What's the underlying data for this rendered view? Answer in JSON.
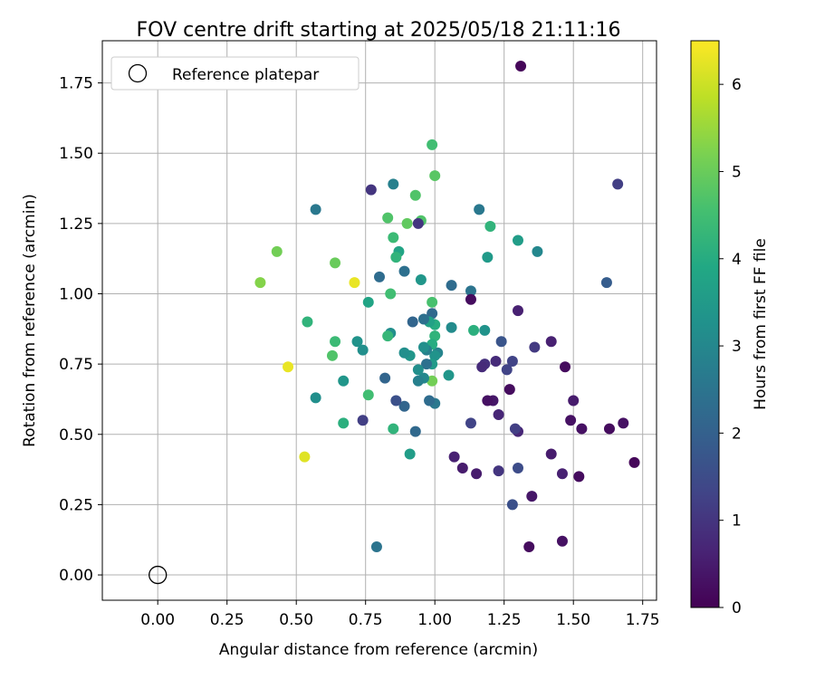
{
  "chart_data": {
    "type": "scatter",
    "title": "FOV centre drift starting at 2025/05/18 21:11:16",
    "xlabel": "Angular distance from reference (arcmin)",
    "ylabel": "Rotation from reference (arcmin)",
    "xlim": [
      -0.2,
      1.8
    ],
    "ylim": [
      -0.09,
      1.9
    ],
    "xticks": [
      "0.00",
      "0.25",
      "0.50",
      "0.75",
      "1.00",
      "1.25",
      "1.50",
      "1.75"
    ],
    "yticks": [
      "0.00",
      "0.25",
      "0.50",
      "0.75",
      "1.00",
      "1.25",
      "1.50",
      "1.75"
    ],
    "grid": true,
    "legend": {
      "placement": "top-left",
      "label": "Reference platepar"
    },
    "reference_point": {
      "x": 0.0,
      "y": 0.0
    },
    "colorbar": {
      "label": "Hours from first FF file",
      "range": [
        0,
        6.5
      ],
      "ticks": [
        "0",
        "1",
        "2",
        "3",
        "4",
        "5",
        "6"
      ],
      "colormap": "viridis"
    },
    "points": [
      {
        "x": 1.31,
        "y": 1.81,
        "t": 0.1
      },
      {
        "x": 1.66,
        "y": 1.39,
        "t": 1.2
      },
      {
        "x": 1.62,
        "y": 1.04,
        "t": 1.9
      },
      {
        "x": 1.72,
        "y": 0.4,
        "t": 0.1
      },
      {
        "x": 1.68,
        "y": 0.54,
        "t": 0.3
      },
      {
        "x": 1.63,
        "y": 0.52,
        "t": 0.2
      },
      {
        "x": 1.53,
        "y": 0.52,
        "t": 0.3
      },
      {
        "x": 1.5,
        "y": 0.62,
        "t": 0.5
      },
      {
        "x": 1.49,
        "y": 0.55,
        "t": 0.3
      },
      {
        "x": 1.47,
        "y": 0.74,
        "t": 0.2
      },
      {
        "x": 1.46,
        "y": 0.36,
        "t": 0.6
      },
      {
        "x": 1.46,
        "y": 0.12,
        "t": 0.3
      },
      {
        "x": 1.52,
        "y": 0.35,
        "t": 0.2
      },
      {
        "x": 1.42,
        "y": 0.83,
        "t": 0.6
      },
      {
        "x": 1.42,
        "y": 0.43,
        "t": 0.5
      },
      {
        "x": 1.37,
        "y": 1.15,
        "t": 3.0
      },
      {
        "x": 1.36,
        "y": 0.81,
        "t": 1.1
      },
      {
        "x": 1.35,
        "y": 0.28,
        "t": 0.4
      },
      {
        "x": 1.34,
        "y": 0.1,
        "t": 0.2
      },
      {
        "x": 1.3,
        "y": 1.19,
        "t": 3.6
      },
      {
        "x": 1.3,
        "y": 0.94,
        "t": 0.6
      },
      {
        "x": 1.3,
        "y": 0.51,
        "t": 0.7
      },
      {
        "x": 1.3,
        "y": 0.38,
        "t": 1.5
      },
      {
        "x": 1.29,
        "y": 0.52,
        "t": 1.2
      },
      {
        "x": 1.28,
        "y": 0.25,
        "t": 1.6
      },
      {
        "x": 1.27,
        "y": 0.66,
        "t": 0.2
      },
      {
        "x": 1.28,
        "y": 0.76,
        "t": 1.3
      },
      {
        "x": 1.26,
        "y": 0.73,
        "t": 1.3
      },
      {
        "x": 1.24,
        "y": 0.83,
        "t": 1.7
      },
      {
        "x": 1.23,
        "y": 0.57,
        "t": 0.7
      },
      {
        "x": 1.23,
        "y": 0.37,
        "t": 1.0
      },
      {
        "x": 1.22,
        "y": 0.76,
        "t": 0.8
      },
      {
        "x": 1.21,
        "y": 0.62,
        "t": 0.4
      },
      {
        "x": 1.2,
        "y": 1.24,
        "t": 4.2
      },
      {
        "x": 1.19,
        "y": 1.13,
        "t": 3.5
      },
      {
        "x": 1.19,
        "y": 0.62,
        "t": 0.3
      },
      {
        "x": 1.18,
        "y": 0.87,
        "t": 3.3
      },
      {
        "x": 1.18,
        "y": 0.75,
        "t": 0.9
      },
      {
        "x": 1.17,
        "y": 0.74,
        "t": 0.8
      },
      {
        "x": 1.16,
        "y": 1.3,
        "t": 2.6
      },
      {
        "x": 1.15,
        "y": 0.36,
        "t": 0.5
      },
      {
        "x": 1.13,
        "y": 1.01,
        "t": 2.5
      },
      {
        "x": 1.13,
        "y": 0.98,
        "t": 0.2
      },
      {
        "x": 1.14,
        "y": 0.87,
        "t": 4.1
      },
      {
        "x": 1.13,
        "y": 0.54,
        "t": 1.3
      },
      {
        "x": 1.1,
        "y": 0.38,
        "t": 0.5
      },
      {
        "x": 1.07,
        "y": 0.42,
        "t": 0.6
      },
      {
        "x": 1.06,
        "y": 1.03,
        "t": 2.3
      },
      {
        "x": 1.06,
        "y": 0.88,
        "t": 3.1
      },
      {
        "x": 1.05,
        "y": 0.71,
        "t": 3.4
      },
      {
        "x": 1.0,
        "y": 0.89,
        "t": 4.0
      },
      {
        "x": 1.01,
        "y": 0.79,
        "t": 2.9
      },
      {
        "x": 1.0,
        "y": 0.85,
        "t": 4.2
      },
      {
        "x": 1.0,
        "y": 0.78,
        "t": 3.3
      },
      {
        "x": 1.0,
        "y": 0.61,
        "t": 2.6
      },
      {
        "x": 0.99,
        "y": 1.53,
        "t": 4.5
      },
      {
        "x": 1.0,
        "y": 1.42,
        "t": 4.8
      },
      {
        "x": 0.99,
        "y": 0.97,
        "t": 4.6
      },
      {
        "x": 0.99,
        "y": 0.93,
        "t": 2.2
      },
      {
        "x": 0.99,
        "y": 0.82,
        "t": 4.0
      },
      {
        "x": 0.99,
        "y": 0.75,
        "t": 3.5
      },
      {
        "x": 0.99,
        "y": 0.69,
        "t": 5.1
      },
      {
        "x": 0.98,
        "y": 0.9,
        "t": 3.7
      },
      {
        "x": 0.98,
        "y": 0.62,
        "t": 2.3
      },
      {
        "x": 0.97,
        "y": 0.8,
        "t": 2.8
      },
      {
        "x": 0.97,
        "y": 0.75,
        "t": 2.4
      },
      {
        "x": 0.96,
        "y": 0.91,
        "t": 2.4
      },
      {
        "x": 0.96,
        "y": 0.81,
        "t": 3.2
      },
      {
        "x": 0.96,
        "y": 0.7,
        "t": 3.0
      },
      {
        "x": 0.95,
        "y": 1.26,
        "t": 4.7
      },
      {
        "x": 0.95,
        "y": 1.05,
        "t": 3.4
      },
      {
        "x": 0.94,
        "y": 1.25,
        "t": 1.0
      },
      {
        "x": 0.93,
        "y": 1.35,
        "t": 4.7
      },
      {
        "x": 0.94,
        "y": 0.73,
        "t": 3.2
      },
      {
        "x": 0.94,
        "y": 0.69,
        "t": 2.8
      },
      {
        "x": 0.93,
        "y": 0.51,
        "t": 2.2
      },
      {
        "x": 0.92,
        "y": 0.9,
        "t": 2.1
      },
      {
        "x": 0.91,
        "y": 0.78,
        "t": 3.4
      },
      {
        "x": 0.91,
        "y": 0.43,
        "t": 3.6
      },
      {
        "x": 0.9,
        "y": 1.25,
        "t": 4.9
      },
      {
        "x": 0.89,
        "y": 1.08,
        "t": 2.4
      },
      {
        "x": 0.89,
        "y": 0.79,
        "t": 3.2
      },
      {
        "x": 0.89,
        "y": 0.6,
        "t": 2.1
      },
      {
        "x": 0.87,
        "y": 1.15,
        "t": 3.8
      },
      {
        "x": 0.86,
        "y": 1.13,
        "t": 4.2
      },
      {
        "x": 0.86,
        "y": 0.62,
        "t": 1.6
      },
      {
        "x": 0.85,
        "y": 1.39,
        "t": 2.8
      },
      {
        "x": 0.85,
        "y": 1.2,
        "t": 4.4
      },
      {
        "x": 0.84,
        "y": 1.0,
        "t": 4.5
      },
      {
        "x": 0.84,
        "y": 0.86,
        "t": 3.2
      },
      {
        "x": 0.85,
        "y": 0.52,
        "t": 4.2
      },
      {
        "x": 0.83,
        "y": 1.27,
        "t": 4.7
      },
      {
        "x": 0.83,
        "y": 0.85,
        "t": 4.3
      },
      {
        "x": 0.82,
        "y": 0.7,
        "t": 2.1
      },
      {
        "x": 0.8,
        "y": 1.06,
        "t": 2.3
      },
      {
        "x": 0.79,
        "y": 0.1,
        "t": 2.5
      },
      {
        "x": 0.77,
        "y": 1.37,
        "t": 1.0
      },
      {
        "x": 0.76,
        "y": 0.97,
        "t": 3.8
      },
      {
        "x": 0.76,
        "y": 0.64,
        "t": 4.5
      },
      {
        "x": 0.74,
        "y": 0.8,
        "t": 3.2
      },
      {
        "x": 0.74,
        "y": 0.55,
        "t": 1.2
      },
      {
        "x": 0.72,
        "y": 0.83,
        "t": 3.3
      },
      {
        "x": 0.71,
        "y": 1.04,
        "t": 6.3
      },
      {
        "x": 0.67,
        "y": 0.69,
        "t": 3.4
      },
      {
        "x": 0.67,
        "y": 0.54,
        "t": 4.1
      },
      {
        "x": 0.64,
        "y": 1.11,
        "t": 5.0
      },
      {
        "x": 0.64,
        "y": 0.83,
        "t": 4.4
      },
      {
        "x": 0.63,
        "y": 0.78,
        "t": 4.7
      },
      {
        "x": 0.57,
        "y": 1.3,
        "t": 2.6
      },
      {
        "x": 0.57,
        "y": 0.63,
        "t": 3.2
      },
      {
        "x": 0.54,
        "y": 0.9,
        "t": 4.2
      },
      {
        "x": 0.53,
        "y": 0.42,
        "t": 6.2
      },
      {
        "x": 0.47,
        "y": 0.74,
        "t": 6.3
      },
      {
        "x": 0.43,
        "y": 1.15,
        "t": 5.1
      },
      {
        "x": 0.37,
        "y": 1.04,
        "t": 5.3
      }
    ]
  }
}
